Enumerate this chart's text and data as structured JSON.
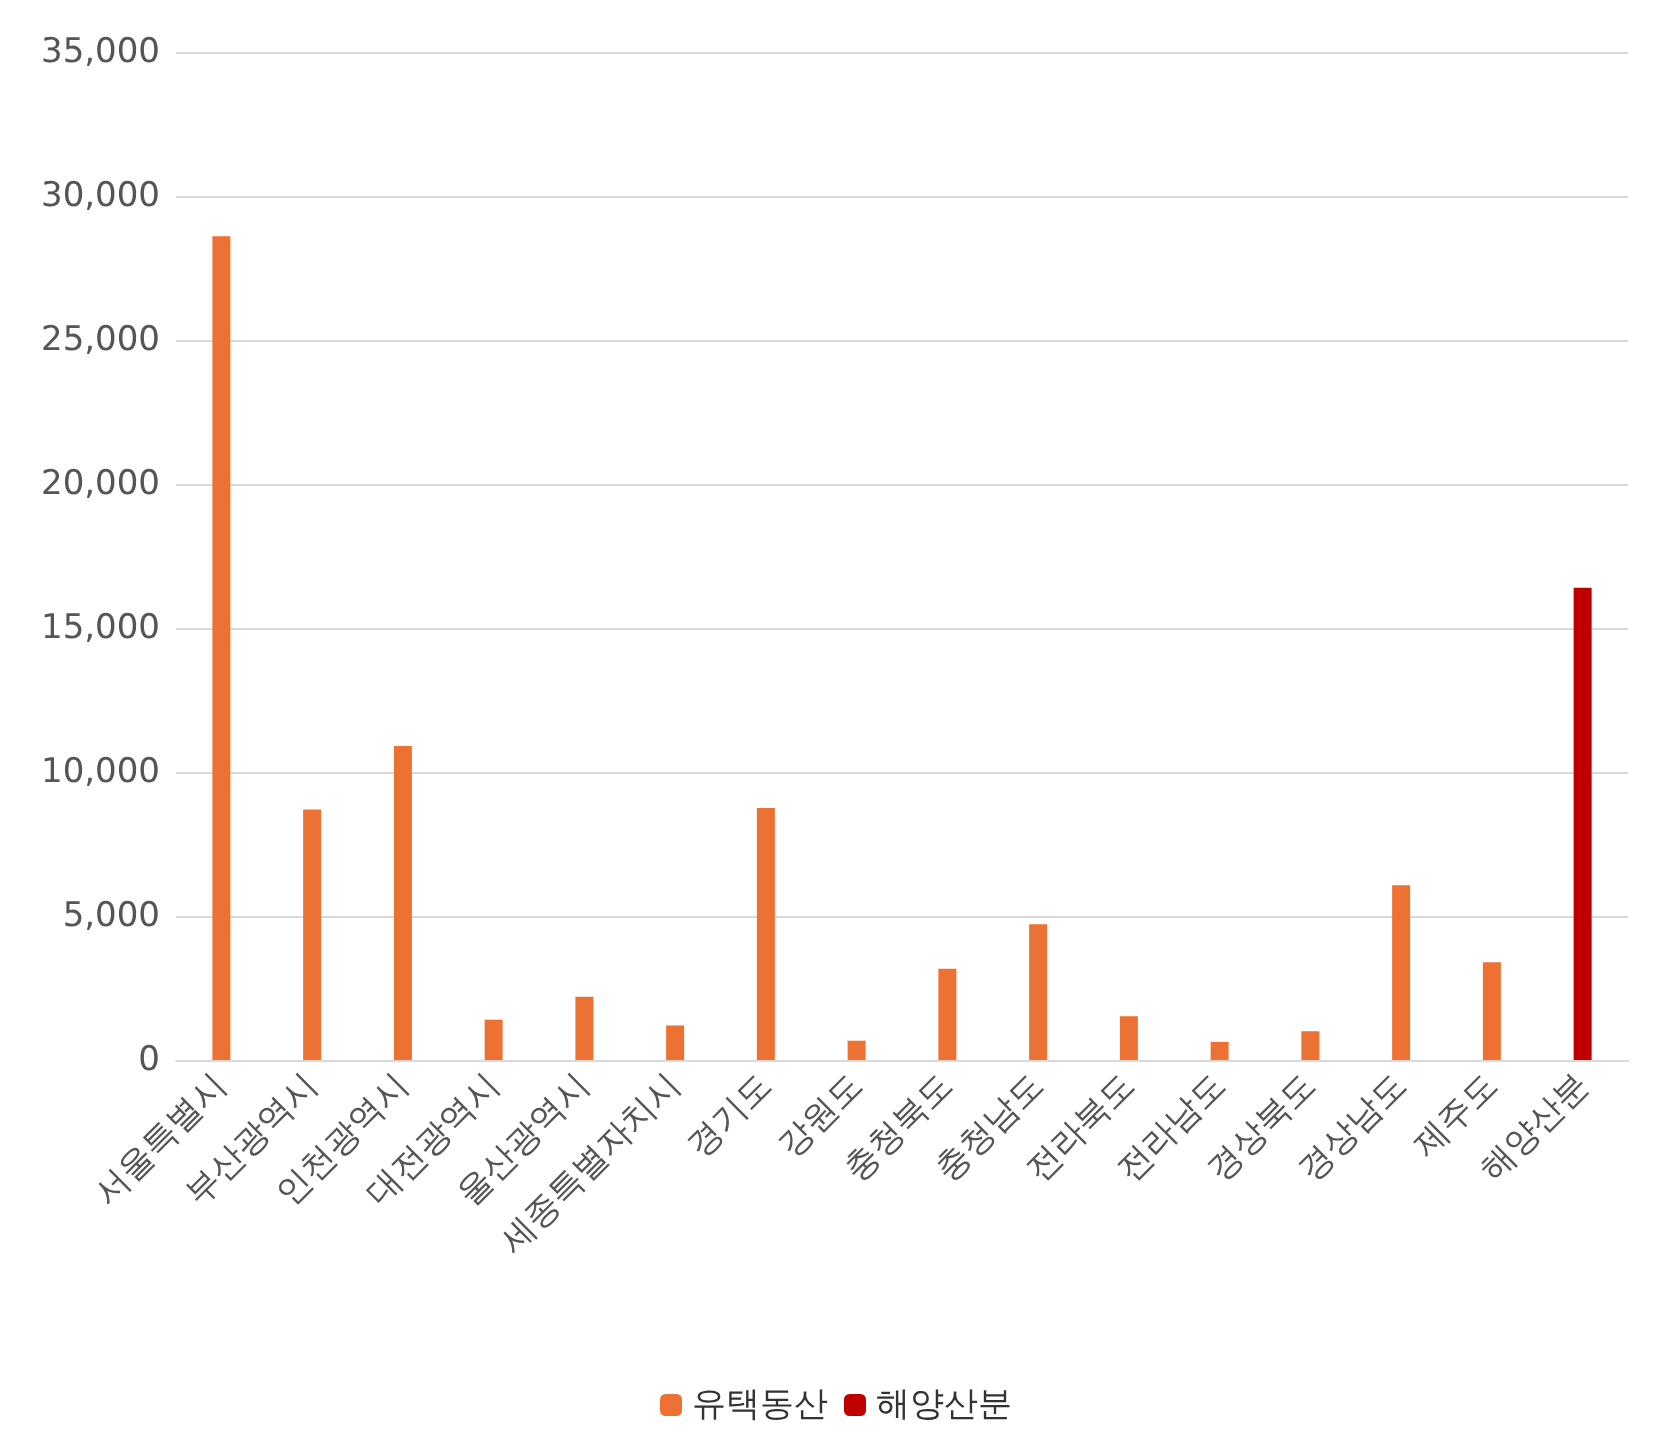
{
  "chart_data": {
    "type": "bar",
    "categories": [
      "서울특별시",
      "부산광역시",
      "인천광역시",
      "대전광역시",
      "울산광역시",
      "세종특별자치시",
      "경기도",
      "강원도",
      "충청북도",
      "충청남도",
      "전라북도",
      "전라남도",
      "경상북도",
      "경상남도",
      "제주도",
      "해양산분"
    ],
    "series": [
      {
        "name": "유택동산",
        "color": "#ed7133",
        "values": [
          28600,
          8700,
          10900,
          1400,
          2200,
          1200,
          8750,
          670,
          3170,
          4710,
          1520,
          630,
          1000,
          6070,
          3390,
          null
        ]
      },
      {
        "name": "해양산분",
        "color": "#c00000",
        "values": [
          null,
          null,
          null,
          null,
          null,
          null,
          null,
          null,
          null,
          null,
          null,
          null,
          null,
          null,
          null,
          16400
        ]
      }
    ],
    "ylim": [
      0,
      35000
    ],
    "yticks": [
      0,
      {
        "value": 5000,
        "label": "5,000"
      },
      {
        "value": 10000,
        "label": "10,000"
      },
      {
        "value": 15000,
        "label": "15,000"
      },
      {
        "value": 20000,
        "label": "20,000"
      },
      {
        "value": 25000,
        "label": "25,000"
      },
      {
        "value": 30000,
        "label": "30,000"
      },
      {
        "value": 35000,
        "label": "35,000"
      }
    ],
    "grid": "y",
    "legend": "bottom"
  }
}
